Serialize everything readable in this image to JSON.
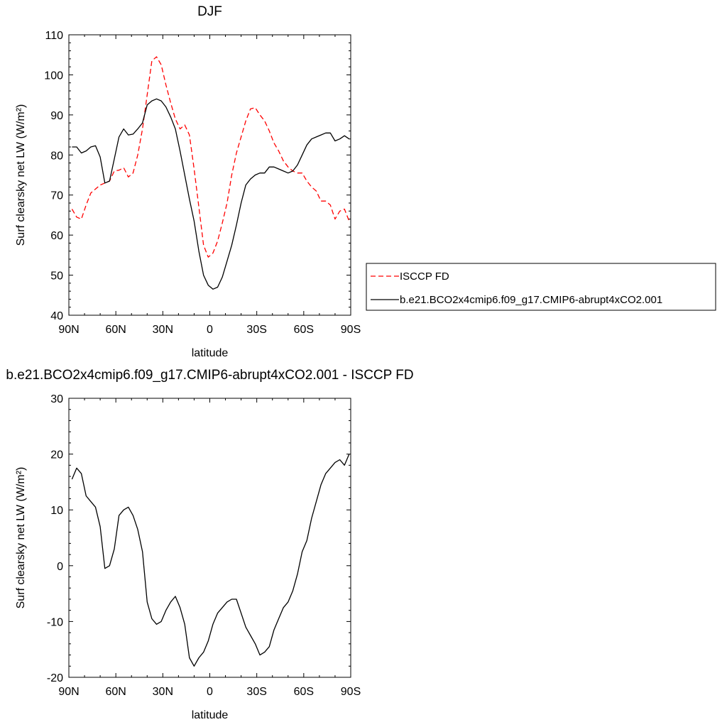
{
  "chart_data": [
    {
      "type": "line",
      "title": "DJF",
      "xlabel": "latitude",
      "ylabel": "Surf clearsky net LW (W/m²)",
      "ylim": [
        40,
        110
      ],
      "xlim": [
        90,
        -90
      ],
      "x_ticks": [
        90,
        60,
        30,
        0,
        -30,
        -60,
        -90
      ],
      "x_tick_labels": [
        "90N",
        "60N",
        "30N",
        "0",
        "30S",
        "60S",
        "90S"
      ],
      "y_ticks": [
        40,
        50,
        60,
        70,
        80,
        90,
        100,
        110
      ],
      "y_tick_labels": [
        "40",
        "50",
        "60",
        "70",
        "80",
        "90",
        "100",
        "110"
      ],
      "legend_position": "right",
      "series": [
        {
          "name": "ISCCP FD",
          "color": "#ff0000",
          "dash": "dashed",
          "x": [
            88,
            85,
            82,
            79,
            76,
            73,
            70,
            67,
            64,
            61,
            58,
            55,
            52,
            49,
            46,
            43,
            40,
            37,
            34,
            31,
            28,
            25,
            22,
            19,
            16,
            13,
            10,
            7,
            4,
            1,
            -2,
            -5,
            -8,
            -11,
            -14,
            -17,
            -20,
            -23,
            -26,
            -29,
            -32,
            -35,
            -38,
            -41,
            -44,
            -47,
            -50,
            -53,
            -56,
            -59,
            -62,
            -65,
            -68,
            -71,
            -74,
            -77,
            -80,
            -83,
            -86,
            -89
          ],
          "y": [
            66.5,
            64.5,
            64.0,
            67.5,
            70.5,
            71.5,
            72.5,
            73.0,
            73.5,
            76.0,
            76.2,
            76.8,
            74.5,
            75.5,
            80.0,
            86.5,
            95.0,
            103.5,
            104.5,
            102.5,
            97.5,
            93.0,
            89.0,
            86.5,
            87.5,
            85.0,
            76.5,
            67.0,
            57.5,
            54.5,
            55.5,
            58.5,
            63.0,
            68.0,
            75.0,
            80.5,
            84.5,
            88.5,
            91.5,
            91.8,
            90.0,
            88.5,
            86.0,
            83.0,
            81.0,
            78.5,
            77.0,
            76.0,
            75.5,
            75.5,
            73.5,
            72.0,
            71.0,
            68.5,
            68.5,
            67.5,
            64.0,
            66.0,
            66.5,
            63.5
          ]
        },
        {
          "name": "b.e21.BCO2x4cmip6.f09_g17.CMIP6-abrupt4xCO2.001",
          "color": "#000000",
          "dash": "solid",
          "x": [
            88,
            85,
            82,
            79,
            76,
            73,
            70,
            67,
            64,
            61,
            58,
            55,
            52,
            49,
            46,
            43,
            40,
            37,
            34,
            31,
            28,
            25,
            22,
            19,
            16,
            13,
            10,
            7,
            4,
            1,
            -2,
            -5,
            -8,
            -11,
            -14,
            -17,
            -20,
            -23,
            -26,
            -29,
            -32,
            -35,
            -38,
            -41,
            -44,
            -47,
            -50,
            -53,
            -56,
            -59,
            -62,
            -65,
            -68,
            -71,
            -74,
            -77,
            -80,
            -83,
            -86,
            -89
          ],
          "y": [
            82.0,
            82.0,
            80.5,
            81.0,
            82.0,
            82.3,
            79.5,
            73.0,
            73.5,
            79.0,
            84.5,
            86.5,
            85.0,
            85.2,
            86.5,
            88.0,
            92.5,
            93.5,
            94.0,
            93.5,
            92.0,
            89.5,
            86.5,
            81.0,
            75.0,
            69.0,
            63.5,
            56.0,
            50.0,
            47.5,
            46.5,
            47.0,
            49.5,
            53.5,
            57.5,
            62.5,
            68.0,
            72.5,
            74.0,
            75.0,
            75.5,
            75.5,
            77.0,
            77.0,
            76.5,
            76.0,
            75.5,
            76.0,
            77.5,
            80.0,
            82.5,
            84.0,
            84.5,
            85.0,
            85.5,
            85.5,
            83.5,
            84.0,
            84.8,
            84.0
          ]
        }
      ]
    },
    {
      "type": "line",
      "title": "b.e21.BCO2x4cmip6.f09_g17.CMIP6-abrupt4xCO2.001 - ISCCP FD",
      "xlabel": "latitude",
      "ylabel": "Surf clearsky net LW (W/m²)",
      "ylim": [
        -20,
        30
      ],
      "xlim": [
        90,
        -90
      ],
      "x_ticks": [
        90,
        60,
        30,
        0,
        -30,
        -60,
        -90
      ],
      "x_tick_labels": [
        "90N",
        "60N",
        "30N",
        "0",
        "30S",
        "60S",
        "90S"
      ],
      "y_ticks": [
        -20,
        -10,
        0,
        10,
        20,
        30
      ],
      "y_tick_labels": [
        "-20",
        "-10",
        "0",
        "10",
        "20",
        "30"
      ],
      "series": [
        {
          "color": "#000000",
          "dash": "solid",
          "x": [
            88,
            85,
            82,
            79,
            76,
            73,
            70,
            67,
            64,
            61,
            58,
            55,
            52,
            49,
            46,
            43,
            40,
            37,
            34,
            31,
            28,
            25,
            22,
            19,
            16,
            13,
            10,
            7,
            4,
            1,
            -2,
            -5,
            -8,
            -11,
            -14,
            -17,
            -20,
            -23,
            -26,
            -29,
            -32,
            -35,
            -38,
            -41,
            -44,
            -47,
            -50,
            -53,
            -56,
            -59,
            -62,
            -65,
            -68,
            -71,
            -74,
            -77,
            -80,
            -83,
            -86,
            -89
          ],
          "y": [
            15.5,
            17.5,
            16.5,
            12.5,
            11.5,
            10.5,
            7.0,
            -0.5,
            0.0,
            3.0,
            9.0,
            10.0,
            10.5,
            9.0,
            6.5,
            2.5,
            -6.5,
            -9.5,
            -10.5,
            -10.0,
            -8.0,
            -6.5,
            -5.5,
            -7.5,
            -10.5,
            -16.5,
            -18.0,
            -16.5,
            -15.5,
            -13.5,
            -10.5,
            -8.5,
            -7.5,
            -6.5,
            -6.0,
            -6.0,
            -8.5,
            -11.0,
            -12.5,
            -14.0,
            -16.0,
            -15.5,
            -14.5,
            -11.5,
            -9.5,
            -7.5,
            -6.5,
            -4.5,
            -1.5,
            2.5,
            4.5,
            8.5,
            11.5,
            14.5,
            16.5,
            17.5,
            18.5,
            19.0,
            18.0,
            20.0
          ]
        }
      ]
    }
  ]
}
